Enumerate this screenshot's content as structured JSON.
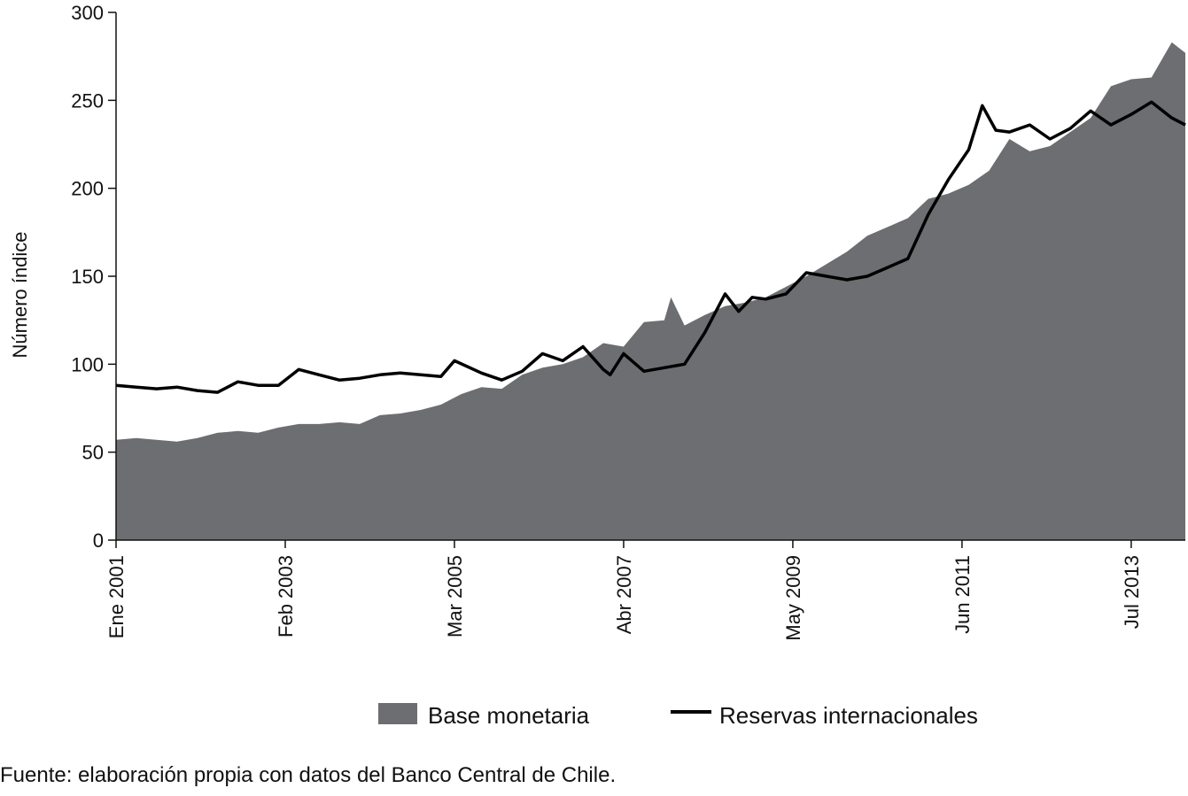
{
  "chart_data": {
    "type": "area",
    "title": "",
    "xlabel": "",
    "ylabel": "Número índice",
    "ylim": [
      0,
      300
    ],
    "yticks": [
      0,
      50,
      100,
      150,
      200,
      250,
      300
    ],
    "x_range": [
      "2001-01",
      "2014-03"
    ],
    "xticks": [
      {
        "date": "2001-01",
        "label": "Ene 2001"
      },
      {
        "date": "2003-02",
        "label": "Feb 2003"
      },
      {
        "date": "2005-03",
        "label": "Mar 2005"
      },
      {
        "date": "2007-04",
        "label": "Abr 2007"
      },
      {
        "date": "2009-05",
        "label": "May 2009"
      },
      {
        "date": "2011-06",
        "label": "Jun 2011"
      },
      {
        "date": "2013-07",
        "label": "Jul 2013"
      }
    ],
    "grid": false,
    "legend_position": "bottom",
    "series": [
      {
        "name": "Base monetaria",
        "type": "area",
        "color": "#6d6e71",
        "points": [
          [
            "2001-01",
            57
          ],
          [
            "2001-04",
            58
          ],
          [
            "2001-07",
            57
          ],
          [
            "2001-10",
            56
          ],
          [
            "2002-01",
            58
          ],
          [
            "2002-04",
            61
          ],
          [
            "2002-07",
            62
          ],
          [
            "2002-10",
            61
          ],
          [
            "2003-01",
            64
          ],
          [
            "2003-04",
            66
          ],
          [
            "2003-07",
            66
          ],
          [
            "2003-10",
            67
          ],
          [
            "2004-01",
            66
          ],
          [
            "2004-04",
            71
          ],
          [
            "2004-07",
            72
          ],
          [
            "2004-10",
            74
          ],
          [
            "2005-01",
            77
          ],
          [
            "2005-04",
            83
          ],
          [
            "2005-07",
            87
          ],
          [
            "2005-10",
            86
          ],
          [
            "2006-01",
            94
          ],
          [
            "2006-04",
            98
          ],
          [
            "2006-07",
            100
          ],
          [
            "2006-10",
            104
          ],
          [
            "2007-01",
            112
          ],
          [
            "2007-04",
            110
          ],
          [
            "2007-07",
            124
          ],
          [
            "2007-10",
            125
          ],
          [
            "2007-11",
            138
          ],
          [
            "2008-01",
            122
          ],
          [
            "2008-04",
            128
          ],
          [
            "2008-07",
            133
          ],
          [
            "2008-10",
            135
          ],
          [
            "2009-01",
            138
          ],
          [
            "2009-04",
            144
          ],
          [
            "2009-07",
            150
          ],
          [
            "2009-10",
            157
          ],
          [
            "2010-01",
            164
          ],
          [
            "2010-04",
            173
          ],
          [
            "2010-07",
            178
          ],
          [
            "2010-10",
            183
          ],
          [
            "2011-01",
            194
          ],
          [
            "2011-04",
            197
          ],
          [
            "2011-07",
            202
          ],
          [
            "2011-10",
            210
          ],
          [
            "2012-01",
            228
          ],
          [
            "2012-04",
            221
          ],
          [
            "2012-07",
            224
          ],
          [
            "2012-10",
            232
          ],
          [
            "2013-01",
            240
          ],
          [
            "2013-04",
            258
          ],
          [
            "2013-07",
            262
          ],
          [
            "2013-10",
            263
          ],
          [
            "2014-01",
            283
          ],
          [
            "2014-03",
            277
          ]
        ]
      },
      {
        "name": "Reservas internacionales",
        "type": "line",
        "color": "#000000",
        "points": [
          [
            "2001-01",
            88
          ],
          [
            "2001-04",
            87
          ],
          [
            "2001-07",
            86
          ],
          [
            "2001-10",
            87
          ],
          [
            "2002-01",
            85
          ],
          [
            "2002-04",
            84
          ],
          [
            "2002-07",
            90
          ],
          [
            "2002-10",
            88
          ],
          [
            "2003-01",
            88
          ],
          [
            "2003-04",
            97
          ],
          [
            "2003-07",
            94
          ],
          [
            "2003-10",
            91
          ],
          [
            "2004-01",
            92
          ],
          [
            "2004-04",
            94
          ],
          [
            "2004-07",
            95
          ],
          [
            "2004-10",
            94
          ],
          [
            "2005-01",
            93
          ],
          [
            "2005-03",
            102
          ],
          [
            "2005-07",
            95
          ],
          [
            "2005-10",
            91
          ],
          [
            "2006-01",
            96
          ],
          [
            "2006-04",
            106
          ],
          [
            "2006-07",
            102
          ],
          [
            "2006-10",
            110
          ],
          [
            "2007-01",
            97
          ],
          [
            "2007-02",
            94
          ],
          [
            "2007-04",
            106
          ],
          [
            "2007-07",
            96
          ],
          [
            "2007-10",
            98
          ],
          [
            "2008-01",
            100
          ],
          [
            "2008-04",
            118
          ],
          [
            "2008-07",
            140
          ],
          [
            "2008-09",
            130
          ],
          [
            "2008-11",
            138
          ],
          [
            "2009-01",
            137
          ],
          [
            "2009-04",
            140
          ],
          [
            "2009-07",
            152
          ],
          [
            "2009-10",
            150
          ],
          [
            "2010-01",
            148
          ],
          [
            "2010-04",
            150
          ],
          [
            "2010-07",
            155
          ],
          [
            "2010-10",
            160
          ],
          [
            "2011-01",
            185
          ],
          [
            "2011-04",
            205
          ],
          [
            "2011-07",
            222
          ],
          [
            "2011-09",
            247
          ],
          [
            "2011-11",
            233
          ],
          [
            "2012-01",
            232
          ],
          [
            "2012-04",
            236
          ],
          [
            "2012-07",
            228
          ],
          [
            "2012-10",
            234
          ],
          [
            "2013-01",
            244
          ],
          [
            "2013-04",
            236
          ],
          [
            "2013-07",
            242
          ],
          [
            "2013-10",
            249
          ],
          [
            "2014-01",
            240
          ],
          [
            "2014-03",
            236
          ]
        ]
      }
    ],
    "source": "Fuente: elaboración propia con datos del Banco Central de Chile."
  }
}
